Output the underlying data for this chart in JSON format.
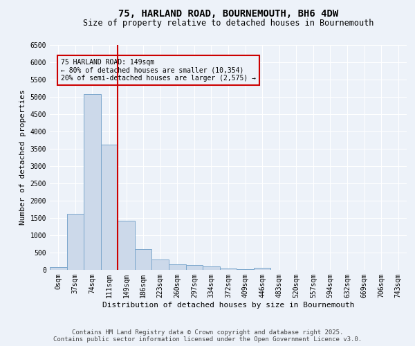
{
  "title": "75, HARLAND ROAD, BOURNEMOUTH, BH6 4DW",
  "subtitle": "Size of property relative to detached houses in Bournemouth",
  "xlabel": "Distribution of detached houses by size in Bournemouth",
  "ylabel": "Number of detached properties",
  "categories": [
    "0sqm",
    "37sqm",
    "74sqm",
    "111sqm",
    "149sqm",
    "186sqm",
    "223sqm",
    "260sqm",
    "297sqm",
    "334sqm",
    "372sqm",
    "409sqm",
    "446sqm",
    "483sqm",
    "520sqm",
    "557sqm",
    "594sqm",
    "632sqm",
    "669sqm",
    "706sqm",
    "743sqm"
  ],
  "values": [
    75,
    1620,
    5090,
    3620,
    1420,
    610,
    310,
    160,
    140,
    95,
    45,
    25,
    60,
    0,
    0,
    0,
    0,
    0,
    0,
    0,
    0
  ],
  "bar_color": "#ccd9ea",
  "bar_edge_color": "#7ba7cc",
  "vline_x": 4,
  "vline_color": "#cc0000",
  "annotation_text": "75 HARLAND ROAD: 149sqm\n← 80% of detached houses are smaller (10,354)\n20% of semi-detached houses are larger (2,575) →",
  "annotation_box_color": "#cc0000",
  "ylim": [
    0,
    6500
  ],
  "yticks": [
    0,
    500,
    1000,
    1500,
    2000,
    2500,
    3000,
    3500,
    4000,
    4500,
    5000,
    5500,
    6000,
    6500
  ],
  "footnote": "Contains HM Land Registry data © Crown copyright and database right 2025.\nContains public sector information licensed under the Open Government Licence v3.0.",
  "background_color": "#edf2f9",
  "grid_color": "#ffffff",
  "title_fontsize": 10,
  "subtitle_fontsize": 8.5,
  "axis_fontsize": 8,
  "tick_fontsize": 7,
  "footnote_fontsize": 6.5
}
